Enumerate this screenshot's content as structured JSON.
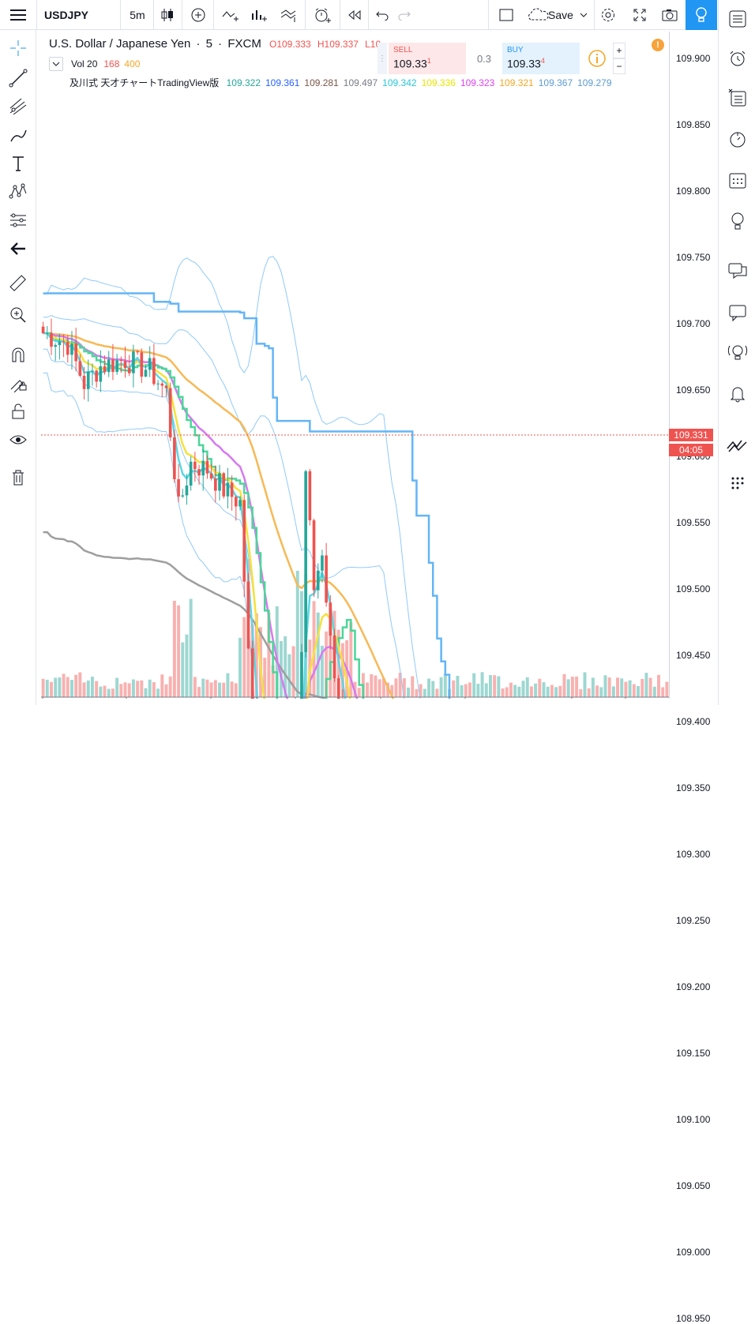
{
  "toolbar": {
    "symbol": "USDJPY",
    "interval": "5m",
    "save_label": "Save"
  },
  "legend": {
    "pair_name": "U.S. Dollar / Japanese Yen",
    "interval": "5",
    "source": "FXCM",
    "open": "O109.333",
    "high": "H109.337",
    "low": "L10",
    "vol_label": "Vol 20",
    "vol_a": "168",
    "vol_b": "400",
    "indicator_name": "及川式 天才チャートTradingView版",
    "indicator_values": [
      {
        "v": "109.322",
        "color": "#26a69a"
      },
      {
        "v": "109.361",
        "color": "#2962ff"
      },
      {
        "v": "109.281",
        "color": "#795548"
      },
      {
        "v": "109.497",
        "color": "#787b86"
      },
      {
        "v": "109.342",
        "color": "#26c6da"
      },
      {
        "v": "109.336",
        "color": "#e6e600"
      },
      {
        "v": "109.323",
        "color": "#e040fb"
      },
      {
        "v": "109.321",
        "color": "#f5a623"
      },
      {
        "v": "109.367",
        "color": "#5b9bd5"
      },
      {
        "v": "109.279",
        "color": "#5b9bd5"
      }
    ]
  },
  "trade": {
    "sell_label": "SELL",
    "sell_price": "109.33",
    "sell_sup": "1",
    "spread": "0.3",
    "buy_label": "BUY",
    "buy_price": "109.33",
    "buy_sup": "4"
  },
  "price_axis": {
    "labels": [
      "109.900",
      "109.850",
      "109.800",
      "109.750",
      "109.700",
      "109.650",
      "109.600",
      "109.550",
      "109.500",
      "109.450",
      "109.400",
      "109.350",
      "109.300",
      "109.250",
      "109.200",
      "109.150",
      "109.100",
      "109.050",
      "109.000",
      "108.950"
    ],
    "current_price": "109.331",
    "countdown": "04:05"
  },
  "colors": {
    "up": "#26a69a",
    "down": "#ef5350",
    "accent": "#2196f3",
    "bb": "#90caf9",
    "ema_yellow": "#f5e23b",
    "ema_green": "#4cd69a",
    "ema_purple": "#d679f0",
    "ema_orange": "#f7b955",
    "ema_cyan": "#5ad7e5",
    "step_blue": "#64b5f6",
    "step_brown": "#8d6e63",
    "ma_gray": "#9e9e9e"
  }
}
